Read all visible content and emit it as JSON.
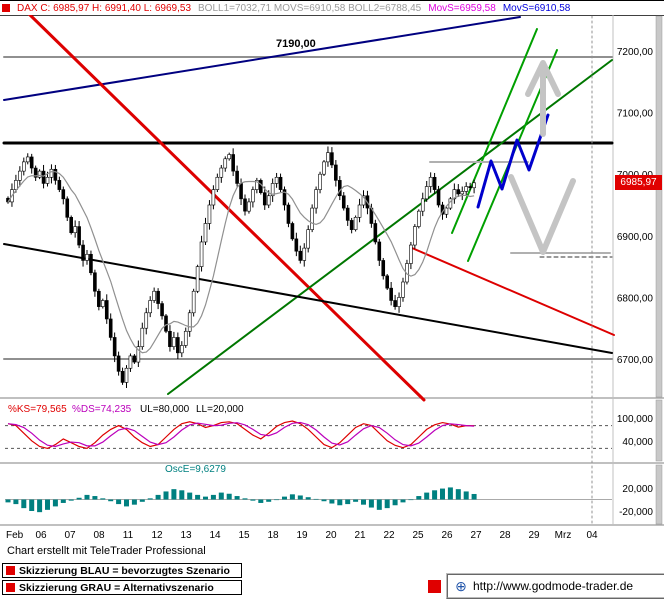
{
  "header": {
    "segments": [
      {
        "text": "DAX C: 6985,97 H: 6991,40 L: 6969,53",
        "color": "#e00000"
      },
      {
        "text": "BOLL1=7032,71 MOVS=6910,58 BOLL2=6788,45",
        "color": "#9a9a9a"
      },
      {
        "text": "MovS=6959,58",
        "color": "#e000e0"
      },
      {
        "text": "MovS=6910,58",
        "color": "#0000dd"
      }
    ]
  },
  "price_tag": {
    "value": "6985,97",
    "bg": "#e00000",
    "fg": "#ffffff"
  },
  "footer": {
    "credit": "Chart erstellt mit TeleTrader Professional"
  },
  "legend": {
    "blue": "Skizzierung BLAU = bevorzugtes Szenario",
    "gray": "Skizzierung GRAU = Alternativszenario",
    "url": "http://www.godmode-trader.de"
  },
  "chart_data": {
    "type": "candlestick",
    "symbol": "DAX",
    "last_close": 6985.97,
    "annotation_7190": "7190,00",
    "x_labels": [
      "Feb",
      "06",
      "07",
      "08",
      "11",
      "12",
      "13",
      "14",
      "15",
      "18",
      "19",
      "20",
      "21",
      "22",
      "25",
      "26",
      "27",
      "28",
      "29",
      "Mrz",
      "04"
    ],
    "price_axis": {
      "ticks": [
        "7200,00",
        "7100,00",
        "7000,00",
        "6900,00",
        "6800,00",
        "6700,00"
      ],
      "tick_values": [
        7200,
        7100,
        7000,
        6900,
        6800,
        6700
      ],
      "range": [
        6640,
        7260
      ]
    },
    "closes": [
      6955,
      6975,
      6990,
      7005,
      7020,
      7028,
      7010,
      6995,
      7005,
      6985,
      6995,
      7008,
      6990,
      6975,
      6960,
      6930,
      6905,
      6915,
      6885,
      6860,
      6870,
      6840,
      6810,
      6785,
      6795,
      6765,
      6735,
      6705,
      6680,
      6662,
      6685,
      6705,
      6695,
      6720,
      6750,
      6775,
      6795,
      6810,
      6790,
      6770,
      6745,
      6720,
      6735,
      6710,
      6722,
      6745,
      6775,
      6810,
      6850,
      6890,
      6920,
      6950,
      6975,
      6995,
      7010,
      7025,
      7032,
      7005,
      6985,
      6960,
      6940,
      6955,
      6975,
      6990,
      6970,
      6950,
      6965,
      6985,
      6995,
      6975,
      6950,
      6920,
      6895,
      6875,
      6860,
      6880,
      6910,
      6945,
      6975,
      7000,
      7020,
      7035,
      7015,
      6990,
      6965,
      6945,
      6925,
      6910,
      6930,
      6950,
      6965,
      6945,
      6920,
      6890,
      6860,
      6835,
      6815,
      6795,
      6785,
      6800,
      6825,
      6855,
      6885,
      6915,
      6940,
      6960,
      6980,
      6995,
      6975,
      6950,
      6935,
      6945,
      6960,
      6975,
      6968,
      6972,
      6980,
      6978,
      6986
    ],
    "trendlines": [
      {
        "name": "gray-7190-line",
        "color": "#909090",
        "w": 2,
        "pts": [
          [
            4,
            56
          ],
          [
            612,
            56
          ]
        ]
      },
      {
        "name": "black-resistance-line",
        "color": "#000000",
        "w": 3,
        "pts": [
          [
            4,
            142
          ],
          [
            612,
            142
          ]
        ]
      },
      {
        "name": "gray-6700-line",
        "color": "#909090",
        "w": 2,
        "pts": [
          [
            4,
            358
          ],
          [
            612,
            358
          ]
        ]
      },
      {
        "name": "rising-navy-trendline",
        "color": "#000080",
        "w": 2,
        "pts": [
          [
            4,
            99
          ],
          [
            520,
            16
          ]
        ]
      },
      {
        "name": "steep-red-downtrend",
        "color": "#dd0000",
        "w": 3,
        "pts": [
          [
            28,
            12
          ],
          [
            424,
            399
          ]
        ]
      },
      {
        "name": "red-channel-line",
        "color": "#dd0000",
        "w": 2,
        "pts": [
          [
            412,
            247
          ],
          [
            614,
            334
          ]
        ]
      },
      {
        "name": "green-uptrend-line",
        "color": "#007700",
        "w": 2,
        "pts": [
          [
            168,
            393
          ],
          [
            612,
            59
          ]
        ]
      },
      {
        "name": "black-declining-support",
        "color": "#000000",
        "w": 2,
        "pts": [
          [
            4,
            243
          ],
          [
            612,
            352
          ]
        ]
      },
      {
        "name": "green-channel-upper",
        "color": "#00a000",
        "w": 2,
        "pts": [
          [
            452,
            232
          ],
          [
            537,
            28
          ]
        ]
      },
      {
        "name": "green-channel-lower",
        "color": "#00a000",
        "w": 2,
        "pts": [
          [
            468,
            260
          ],
          [
            557,
            49
          ]
        ]
      },
      {
        "name": "gray-target-seg-1",
        "color": "#b0b0b0",
        "w": 2,
        "pts": [
          [
            430,
            161
          ],
          [
            528,
            161
          ]
        ]
      },
      {
        "name": "gray-target-seg-2",
        "color": "#b0b0b0",
        "w": 2,
        "pts": [
          [
            511,
            252
          ],
          [
            610,
            252
          ]
        ]
      },
      {
        "name": "dashed-level",
        "color": "#333333",
        "w": 1,
        "dash": "4,3",
        "pts": [
          [
            540,
            256
          ],
          [
            612,
            256
          ]
        ]
      },
      {
        "name": "dashed-vertical",
        "color": "#909090",
        "w": 1,
        "dash": "2,3",
        "pts": [
          [
            592,
            15
          ],
          [
            592,
            523
          ]
        ]
      }
    ],
    "sketches": [
      {
        "name": "blue-zigzag-preferred",
        "color": "#0000cc",
        "w": 3,
        "pts": [
          [
            478,
            206
          ],
          [
            491,
            160
          ],
          [
            502,
            188
          ],
          [
            517,
            139
          ],
          [
            529,
            169
          ],
          [
            548,
            114
          ]
        ]
      },
      {
        "name": "gray-arrow-shaft",
        "color": "#c4c4c4",
        "w": 6,
        "pts": [
          [
            543,
            133
          ],
          [
            543,
            72
          ]
        ]
      },
      {
        "name": "gray-arrow-head",
        "color": "#c4c4c4",
        "w": 6,
        "pts": [
          [
            528,
            93
          ],
          [
            543,
            62
          ],
          [
            558,
            93
          ]
        ]
      },
      {
        "name": "gray-v-alternative",
        "color": "#c4c4c4",
        "w": 6,
        "pts": [
          [
            511,
            176
          ],
          [
            543,
            251
          ],
          [
            573,
            180
          ]
        ]
      }
    ],
    "stochastic": {
      "labels": [
        {
          "text": "%KS=79,565",
          "color": "#e00000"
        },
        {
          "text": "%DS=74,235",
          "color": "#bb00bb"
        },
        {
          "text": "UL=80,000",
          "color": "#000000"
        },
        {
          "text": "LL=20,000",
          "color": "#000000"
        }
      ],
      "ul": 80,
      "ll": 20,
      "axis_ticks": [
        {
          "v": 100,
          "t": "100,000"
        },
        {
          "v": 40,
          "t": "40,000"
        }
      ],
      "k": [
        85,
        80,
        60,
        40,
        25,
        20,
        30,
        45,
        35,
        25,
        20,
        35,
        55,
        70,
        80,
        70,
        50,
        35,
        25,
        30,
        50,
        70,
        85,
        90,
        85,
        75,
        80,
        88,
        90,
        85,
        70,
        55,
        45,
        60,
        78,
        88,
        92,
        85,
        70,
        50,
        30,
        22,
        35,
        55,
        75,
        85,
        80,
        60,
        40,
        28,
        22,
        30,
        50,
        70,
        82,
        88,
        84,
        76,
        80,
        79.6
      ]
    },
    "osce": {
      "label": {
        "text": "OscE=9,6279",
        "color": "#008080"
      },
      "axis_ticks": [
        {
          "v": 20000,
          "t": "20,000"
        },
        {
          "v": -20000,
          "t": "-20,000"
        }
      ],
      "values": [
        -5000,
        -8000,
        -15000,
        -20000,
        -22000,
        -18000,
        -12000,
        -6000,
        -2000,
        3000,
        8000,
        6000,
        2000,
        -3000,
        -8000,
        -12000,
        -9000,
        -4000,
        2000,
        8000,
        14000,
        18000,
        16000,
        12000,
        8000,
        5000,
        8000,
        12000,
        10000,
        6000,
        2000,
        -2000,
        -6000,
        -4000,
        0,
        5000,
        9000,
        7000,
        4000,
        1000,
        -3000,
        -7000,
        -10000,
        -8000,
        -4000,
        -9000,
        -14000,
        -18000,
        -15000,
        -10000,
        -5000,
        0,
        6000,
        12000,
        16000,
        19000,
        21000,
        18000,
        14000,
        9600
      ]
    }
  }
}
